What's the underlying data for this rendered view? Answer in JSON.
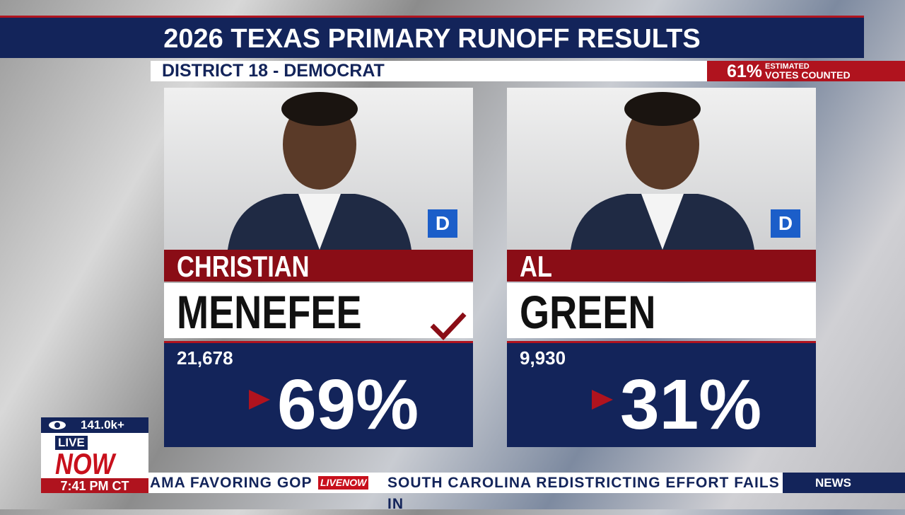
{
  "header": {
    "title": "2026 TEXAS PRIMARY RUNOFF RESULTS",
    "subtitle": "DISTRICT 18 - DEMOCRAT",
    "counted": {
      "percent": "61%",
      "line1": "ESTIMATED",
      "line2": "VOTES COUNTED"
    }
  },
  "candidates": [
    {
      "first": "CHRISTIAN",
      "last": "MENEFEE",
      "party": "D",
      "votes": "21,678",
      "percent": "69%",
      "winner": true
    },
    {
      "first": "AL",
      "last": "GREEN",
      "party": "D",
      "votes": "9,930",
      "percent": "31%",
      "winner": false
    }
  ],
  "badge": {
    "viewers": "141.0k+",
    "live": "LIVE",
    "now": "NOW",
    "time": "7:41 PM CT"
  },
  "ticker": {
    "left": "AMA FAVORING GOP",
    "logo": "LIVENOW",
    "right": "SOUTH CAROLINA REDISTRICTING EFFORT FAILS IN",
    "section": "NEWS"
  }
}
